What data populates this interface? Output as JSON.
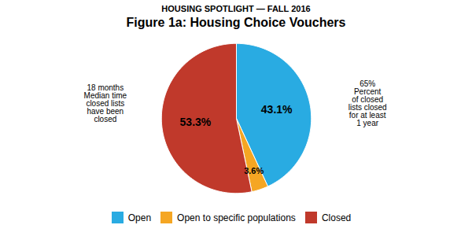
{
  "chart_data": {
    "type": "pie",
    "title": "Figure 1a: Housing Choice Vouchers",
    "subtitle": "HOUSING SPOTLIGHT — FALL 2016",
    "categories": [
      "Open",
      "Open to specific populations",
      "Closed"
    ],
    "values": [
      43.1,
      3.6,
      53.3
    ],
    "value_labels": [
      "43.1%",
      "3.6%",
      "53.3%"
    ],
    "colors": [
      "#29ABE2",
      "#F5A623",
      "#C0392B"
    ],
    "data_labels": true,
    "legend": "bottom",
    "annotations": [
      "18 months\nMedian time\nclosed lists\nhave been\nclosed",
      "65%\nPercent\nof closed\nlists closed\nfor at least\n1 year"
    ]
  }
}
